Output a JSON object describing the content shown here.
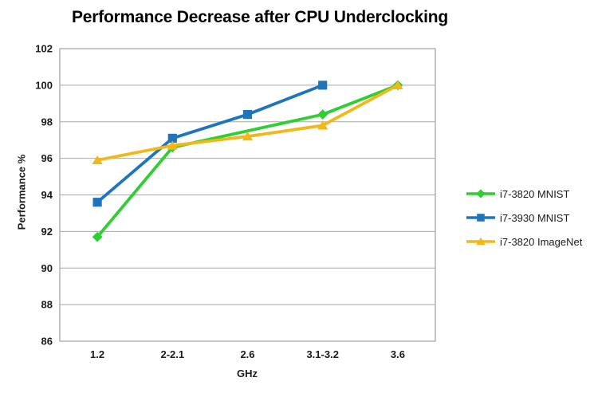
{
  "chart_data": {
    "type": "line",
    "title": "Performance Decrease after CPU Underclocking",
    "xlabel": "GHz",
    "ylabel": "Performance %",
    "categories": [
      "1.2",
      "2-2.1",
      "2.6",
      "3.1-3.2",
      "3.6"
    ],
    "series": [
      {
        "name": "i7-3820 MNIST",
        "color": "#2FCE33",
        "marker": "diamond",
        "values": [
          91.7,
          96.6,
          null,
          98.4,
          100
        ]
      },
      {
        "name": "i7-3930 MNIST",
        "color": "#1F75BC",
        "marker": "square",
        "values": [
          93.6,
          97.1,
          98.4,
          100,
          null
        ]
      },
      {
        "name": "i7-3820 ImageNet",
        "color": "#F2B718",
        "marker": "triangle",
        "values": [
          95.9,
          96.7,
          97.2,
          97.8,
          100
        ]
      }
    ],
    "ylim": [
      86,
      102
    ],
    "ytick_step": 2,
    "grid": true,
    "legend_position": "right"
  },
  "colors": {
    "grid": "#A8A8A8",
    "axis_text": "#1B1B1B",
    "title_text": "#000000",
    "background": "#FFFFFF"
  }
}
